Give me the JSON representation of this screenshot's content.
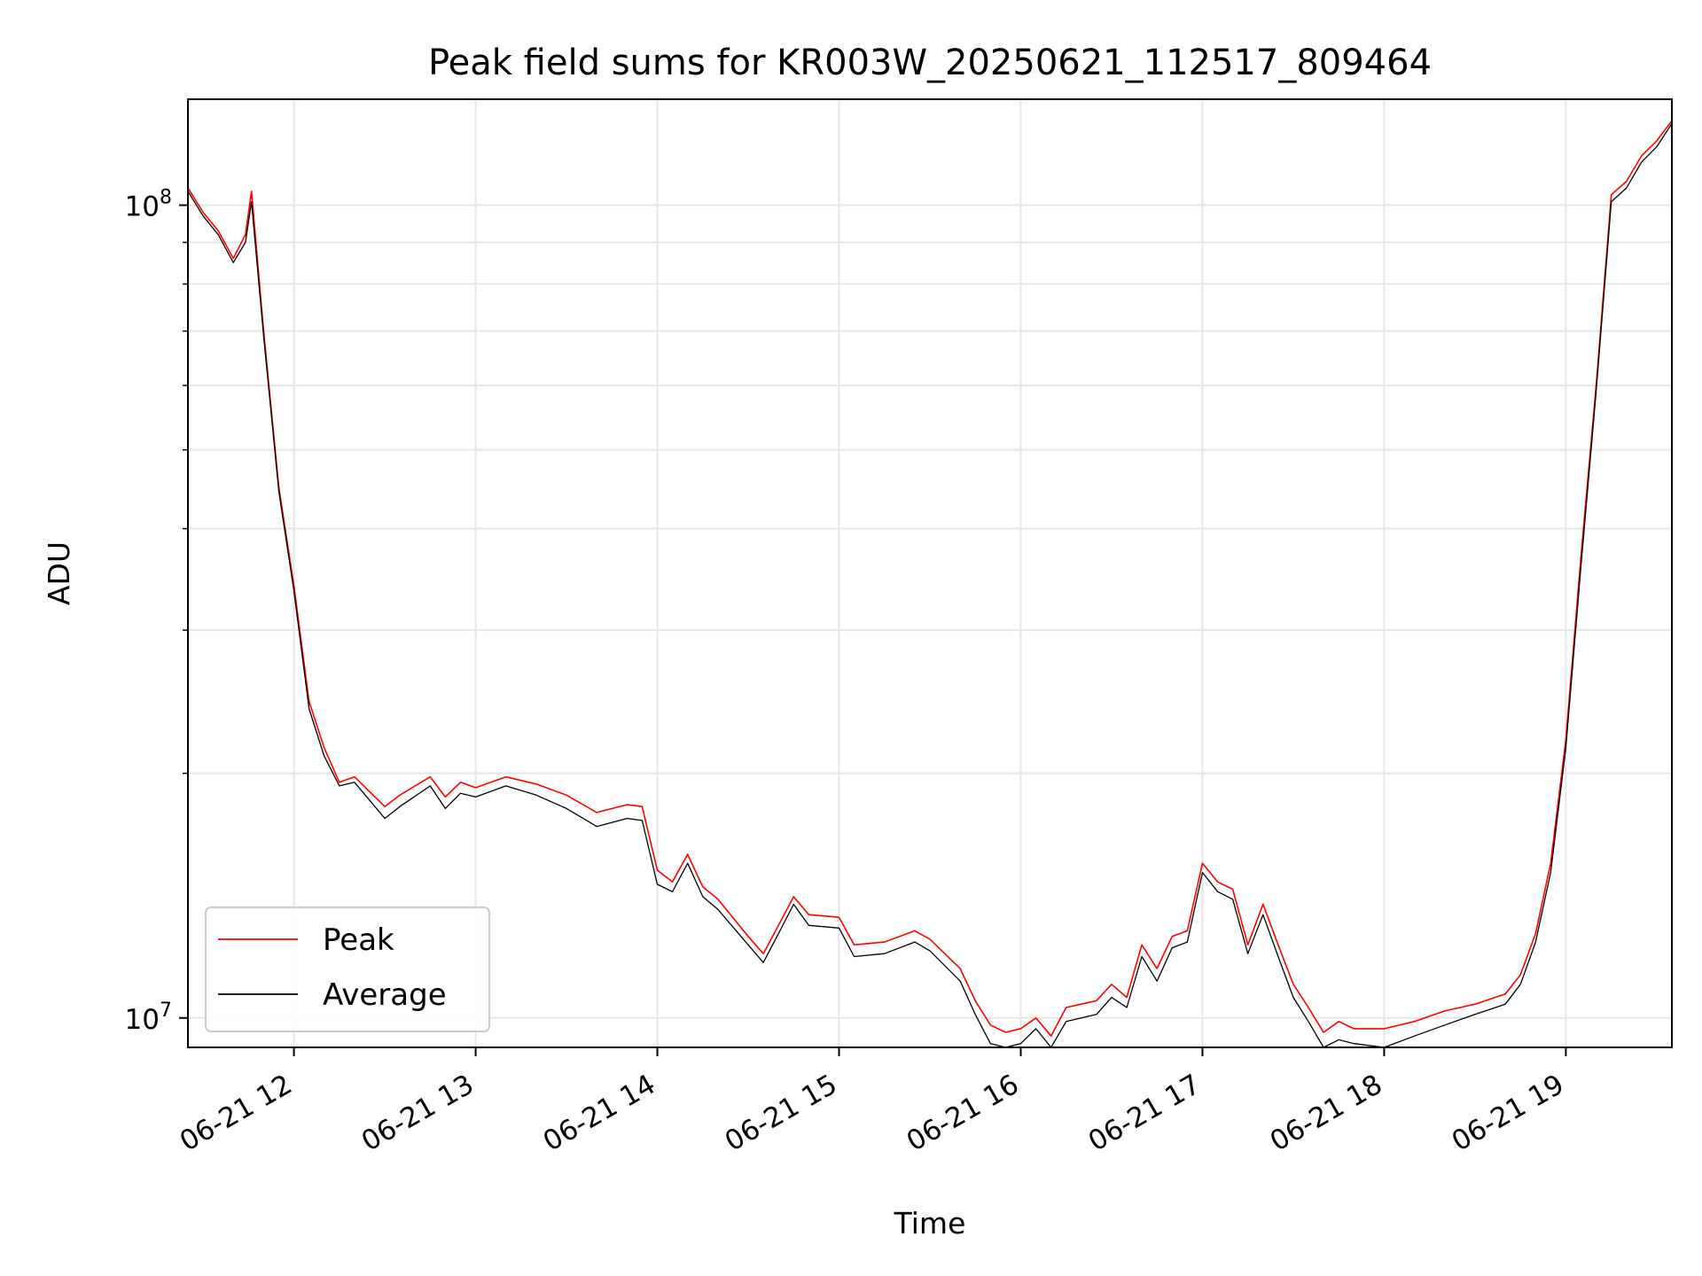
{
  "chart_data": {
    "type": "line",
    "title": "Peak field sums for KR003W_20250621_112517_809464",
    "xlabel": "Time",
    "ylabel": "ADU",
    "x_type": "datetime",
    "xlim": [
      "2025-06-21 11:25",
      "2025-06-21 19:35"
    ],
    "ylim": [
      9200000,
      135000000
    ],
    "y_scale": "log",
    "grid": true,
    "legend_position": "lower-left",
    "x_ticks": [
      "2025-06-21 12:00",
      "2025-06-21 13:00",
      "2025-06-21 14:00",
      "2025-06-21 15:00",
      "2025-06-21 16:00",
      "2025-06-21 17:00",
      "2025-06-21 18:00",
      "2025-06-21 19:00"
    ],
    "x_tick_labels": [
      "06-21 12",
      "06-21 13",
      "06-21 14",
      "06-21 15",
      "06-21 16",
      "06-21 17",
      "06-21 18",
      "06-21 19"
    ],
    "y_ticks": [
      10000000,
      100000000
    ],
    "y_tick_labels": [
      {
        "base": "10",
        "exp": "7"
      },
      {
        "base": "10",
        "exp": "8"
      }
    ],
    "series": [
      {
        "name": "Peak",
        "color": "#ff0000",
        "x": [
          "2025-06-21 11:25",
          "2025-06-21 11:30",
          "2025-06-21 11:35",
          "2025-06-21 11:40",
          "2025-06-21 11:44",
          "2025-06-21 11:46",
          "2025-06-21 11:50",
          "2025-06-21 11:55",
          "2025-06-21 12:00",
          "2025-06-21 12:05",
          "2025-06-21 12:10",
          "2025-06-21 12:15",
          "2025-06-21 12:20",
          "2025-06-21 12:30",
          "2025-06-21 12:35",
          "2025-06-21 12:45",
          "2025-06-21 12:50",
          "2025-06-21 12:55",
          "2025-06-21 13:00",
          "2025-06-21 13:10",
          "2025-06-21 13:20",
          "2025-06-21 13:30",
          "2025-06-21 13:40",
          "2025-06-21 13:50",
          "2025-06-21 13:55",
          "2025-06-21 14:00",
          "2025-06-21 14:05",
          "2025-06-21 14:10",
          "2025-06-21 14:15",
          "2025-06-21 14:20",
          "2025-06-21 14:30",
          "2025-06-21 14:35",
          "2025-06-21 14:40",
          "2025-06-21 14:45",
          "2025-06-21 14:50",
          "2025-06-21 15:00",
          "2025-06-21 15:05",
          "2025-06-21 15:15",
          "2025-06-21 15:25",
          "2025-06-21 15:30",
          "2025-06-21 15:40",
          "2025-06-21 15:45",
          "2025-06-21 15:50",
          "2025-06-21 15:55",
          "2025-06-21 16:00",
          "2025-06-21 16:05",
          "2025-06-21 16:10",
          "2025-06-21 16:15",
          "2025-06-21 16:20",
          "2025-06-21 16:25",
          "2025-06-21 16:30",
          "2025-06-21 16:35",
          "2025-06-21 16:40",
          "2025-06-21 16:45",
          "2025-06-21 16:50",
          "2025-06-21 16:55",
          "2025-06-21 17:00",
          "2025-06-21 17:05",
          "2025-06-21 17:10",
          "2025-06-21 17:15",
          "2025-06-21 17:20",
          "2025-06-21 17:25",
          "2025-06-21 17:30",
          "2025-06-21 17:35",
          "2025-06-21 17:40",
          "2025-06-21 17:45",
          "2025-06-21 17:50",
          "2025-06-21 18:00",
          "2025-06-21 18:10",
          "2025-06-21 18:20",
          "2025-06-21 18:30",
          "2025-06-21 18:40",
          "2025-06-21 18:45",
          "2025-06-21 18:50",
          "2025-06-21 18:55",
          "2025-06-21 19:00",
          "2025-06-21 19:05",
          "2025-06-21 19:10",
          "2025-06-21 19:15",
          "2025-06-21 19:20",
          "2025-06-21 19:25",
          "2025-06-21 19:30",
          "2025-06-21 19:35"
        ],
        "y": [
          105000000,
          98000000,
          93000000,
          86000000,
          92000000,
          104000000,
          70000000,
          45000000,
          34000000,
          24500000,
          21500000,
          19500000,
          19800000,
          18200000,
          18800000,
          19800000,
          18700000,
          19500000,
          19200000,
          19800000,
          19400000,
          18800000,
          17900000,
          18300000,
          18200000,
          15200000,
          14700000,
          15900000,
          14500000,
          14000000,
          12600000,
          12000000,
          13000000,
          14100000,
          13400000,
          13300000,
          12300000,
          12400000,
          12800000,
          12500000,
          11500000,
          10500000,
          9800000,
          9600000,
          9700000,
          10000000,
          9500000,
          10300000,
          10400000,
          10500000,
          11000000,
          10600000,
          12300000,
          11500000,
          12600000,
          12800000,
          15500000,
          14700000,
          14400000,
          12300000,
          13800000,
          12300000,
          11000000,
          10300000,
          9600000,
          9900000,
          9700000,
          9700000,
          9900000,
          10200000,
          10400000,
          10700000,
          11300000,
          12700000,
          15500000,
          22000000,
          37000000,
          60000000,
          103000000,
          107000000,
          115000000,
          120000000,
          127000000
        ]
      },
      {
        "name": "Average",
        "color": "#000000",
        "x": [
          "2025-06-21 11:25",
          "2025-06-21 11:30",
          "2025-06-21 11:35",
          "2025-06-21 11:40",
          "2025-06-21 11:44",
          "2025-06-21 11:46",
          "2025-06-21 11:50",
          "2025-06-21 11:55",
          "2025-06-21 12:00",
          "2025-06-21 12:05",
          "2025-06-21 12:10",
          "2025-06-21 12:15",
          "2025-06-21 12:20",
          "2025-06-21 12:30",
          "2025-06-21 12:35",
          "2025-06-21 12:45",
          "2025-06-21 12:50",
          "2025-06-21 12:55",
          "2025-06-21 13:00",
          "2025-06-21 13:10",
          "2025-06-21 13:20",
          "2025-06-21 13:30",
          "2025-06-21 13:40",
          "2025-06-21 13:50",
          "2025-06-21 13:55",
          "2025-06-21 14:00",
          "2025-06-21 14:05",
          "2025-06-21 14:10",
          "2025-06-21 14:15",
          "2025-06-21 14:20",
          "2025-06-21 14:30",
          "2025-06-21 14:35",
          "2025-06-21 14:40",
          "2025-06-21 14:45",
          "2025-06-21 14:50",
          "2025-06-21 15:00",
          "2025-06-21 15:05",
          "2025-06-21 15:15",
          "2025-06-21 15:25",
          "2025-06-21 15:30",
          "2025-06-21 15:40",
          "2025-06-21 15:45",
          "2025-06-21 15:50",
          "2025-06-21 15:55",
          "2025-06-21 16:00",
          "2025-06-21 16:05",
          "2025-06-21 16:10",
          "2025-06-21 16:15",
          "2025-06-21 16:20",
          "2025-06-21 16:25",
          "2025-06-21 16:30",
          "2025-06-21 16:35",
          "2025-06-21 16:40",
          "2025-06-21 16:45",
          "2025-06-21 16:50",
          "2025-06-21 16:55",
          "2025-06-21 17:00",
          "2025-06-21 17:05",
          "2025-06-21 17:10",
          "2025-06-21 17:15",
          "2025-06-21 17:20",
          "2025-06-21 17:25",
          "2025-06-21 17:30",
          "2025-06-21 17:35",
          "2025-06-21 17:40",
          "2025-06-21 17:45",
          "2025-06-21 17:50",
          "2025-06-21 18:00",
          "2025-06-21 18:10",
          "2025-06-21 18:20",
          "2025-06-21 18:30",
          "2025-06-21 18:40",
          "2025-06-21 18:45",
          "2025-06-21 18:50",
          "2025-06-21 18:55",
          "2025-06-21 19:00",
          "2025-06-21 19:05",
          "2025-06-21 19:10",
          "2025-06-21 19:15",
          "2025-06-21 19:20",
          "2025-06-21 19:25",
          "2025-06-21 19:30",
          "2025-06-21 19:35"
        ],
        "y": [
          104000000,
          97000000,
          92000000,
          85000000,
          90000000,
          101000000,
          69000000,
          44500000,
          33500000,
          24000000,
          21000000,
          19300000,
          19500000,
          17600000,
          18200000,
          19300000,
          18100000,
          18900000,
          18700000,
          19300000,
          18800000,
          18100000,
          17200000,
          17600000,
          17500000,
          14600000,
          14300000,
          15500000,
          14100000,
          13600000,
          12300000,
          11700000,
          12700000,
          13800000,
          13000000,
          12900000,
          11900000,
          12000000,
          12400000,
          12100000,
          11100000,
          10100000,
          9300000,
          9200000,
          9300000,
          9700000,
          9200000,
          9900000,
          10000000,
          10100000,
          10600000,
          10300000,
          11900000,
          11100000,
          12200000,
          12400000,
          15100000,
          14300000,
          14000000,
          12000000,
          13400000,
          11900000,
          10600000,
          9900000,
          9200000,
          9400000,
          9300000,
          9200000,
          9500000,
          9800000,
          10100000,
          10400000,
          11000000,
          12400000,
          15100000,
          21500000,
          36000000,
          59000000,
          101000000,
          105000000,
          113000000,
          118000000,
          126000000
        ]
      }
    ]
  }
}
